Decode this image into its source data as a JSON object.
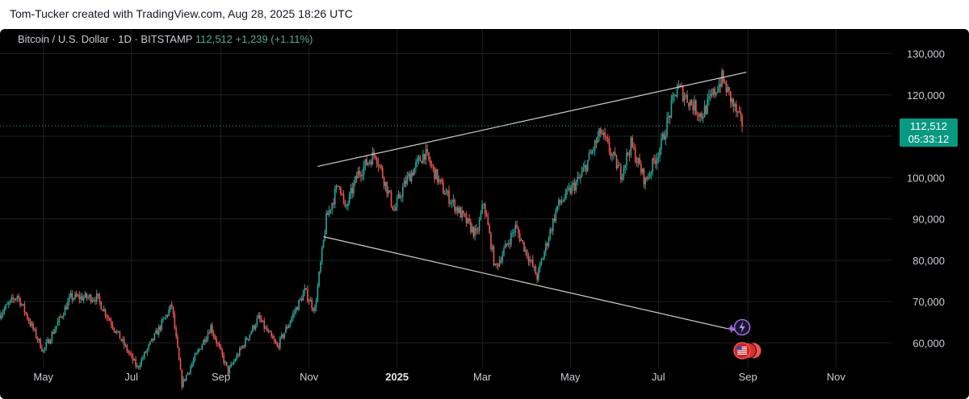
{
  "header": {
    "text": "Tom-Tucker created with TradingView.com, Aug 28, 2025 18:26 UTC"
  },
  "legend": {
    "symbol": "Bitcoin / U.S. Dollar · 1D · BITSTAMP",
    "last": "112,512",
    "change": "+1,239",
    "change_pct": "(+1.11%)"
  },
  "price_label": {
    "price": "112,512",
    "countdown": "05:33:12"
  },
  "colors": {
    "background": "#000000",
    "up": "#26a69a",
    "down": "#ef5350",
    "trendline": "#cfcfcf",
    "price_box": "#089981"
  },
  "chart_data": {
    "type": "candlestick",
    "title": "",
    "interval": "1D",
    "exchange": "BITSTAMP",
    "y_axis": {
      "ticks": [
        60000,
        70000,
        80000,
        90000,
        100000,
        110000,
        120000,
        130000
      ],
      "tick_labels": [
        "60,000",
        "70,000",
        "80,000",
        "90,000",
        "100,000",
        "",
        "120,000",
        "130,000"
      ],
      "range": [
        55000,
        134000
      ],
      "position": "right"
    },
    "x_axis": {
      "ticks": [
        {
          "date": "2024-05-01",
          "label": "May",
          "bold": false
        },
        {
          "date": "2024-07-01",
          "label": "Jul",
          "bold": false
        },
        {
          "date": "2024-09-01",
          "label": "Sep",
          "bold": false
        },
        {
          "date": "2024-11-01",
          "label": "Nov",
          "bold": false
        },
        {
          "date": "2025-01-01",
          "label": "2025",
          "bold": true
        },
        {
          "date": "2025-03-01",
          "label": "Mar",
          "bold": false
        },
        {
          "date": "2025-05-01",
          "label": "May",
          "bold": false
        },
        {
          "date": "2025-07-01",
          "label": "Jul",
          "bold": false
        },
        {
          "date": "2025-09-01",
          "label": "Sep",
          "bold": false
        },
        {
          "date": "2025-11-01",
          "label": "Nov",
          "bold": false
        }
      ],
      "range": [
        "2024-04-01",
        "2025-12-10"
      ]
    },
    "grid": true,
    "last_price": 112512,
    "anchors": [
      [
        "2024-04-01",
        67000
      ],
      [
        "2024-04-13",
        71500
      ],
      [
        "2024-05-01",
        58000
      ],
      [
        "2024-05-20",
        71000
      ],
      [
        "2024-06-07",
        71000
      ],
      [
        "2024-07-05",
        54000
      ],
      [
        "2024-07-29",
        69000
      ],
      [
        "2024-08-05",
        50000
      ],
      [
        "2024-08-25",
        64000
      ],
      [
        "2024-09-06",
        53000
      ],
      [
        "2024-09-27",
        66000
      ],
      [
        "2024-10-10",
        59000
      ],
      [
        "2024-10-29",
        72500
      ],
      [
        "2024-11-05",
        68000
      ],
      [
        "2024-11-13",
        90000
      ],
      [
        "2024-11-22",
        99000
      ],
      [
        "2024-11-26",
        92000
      ],
      [
        "2024-12-05",
        101000
      ],
      [
        "2024-12-17",
        106000
      ],
      [
        "2024-12-30",
        92000
      ],
      [
        "2025-01-07",
        99000
      ],
      [
        "2025-01-20",
        106000
      ],
      [
        "2025-02-02",
        97000
      ],
      [
        "2025-02-25",
        86000
      ],
      [
        "2025-03-02",
        94000
      ],
      [
        "2025-03-10",
        78000
      ],
      [
        "2025-03-24",
        88000
      ],
      [
        "2025-04-08",
        76000
      ],
      [
        "2025-04-22",
        93000
      ],
      [
        "2025-05-08",
        100000
      ],
      [
        "2025-05-22",
        111000
      ],
      [
        "2025-06-05",
        101000
      ],
      [
        "2025-06-12",
        108000
      ],
      [
        "2025-06-22",
        99000
      ],
      [
        "2025-07-03",
        108000
      ],
      [
        "2025-07-14",
        122000
      ],
      [
        "2025-07-31",
        115000
      ],
      [
        "2025-08-14",
        124000
      ],
      [
        "2025-08-28",
        112512
      ]
    ],
    "trendlines": [
      {
        "from": [
          "2024-11-07",
          102700
        ],
        "to": [
          "2025-08-31",
          125500
        ]
      },
      {
        "from": [
          "2024-11-11",
          85700
        ],
        "to": [
          "2025-08-31",
          62400
        ]
      }
    ],
    "markers": [
      "lightning-icon",
      "us-flag-icon"
    ]
  }
}
